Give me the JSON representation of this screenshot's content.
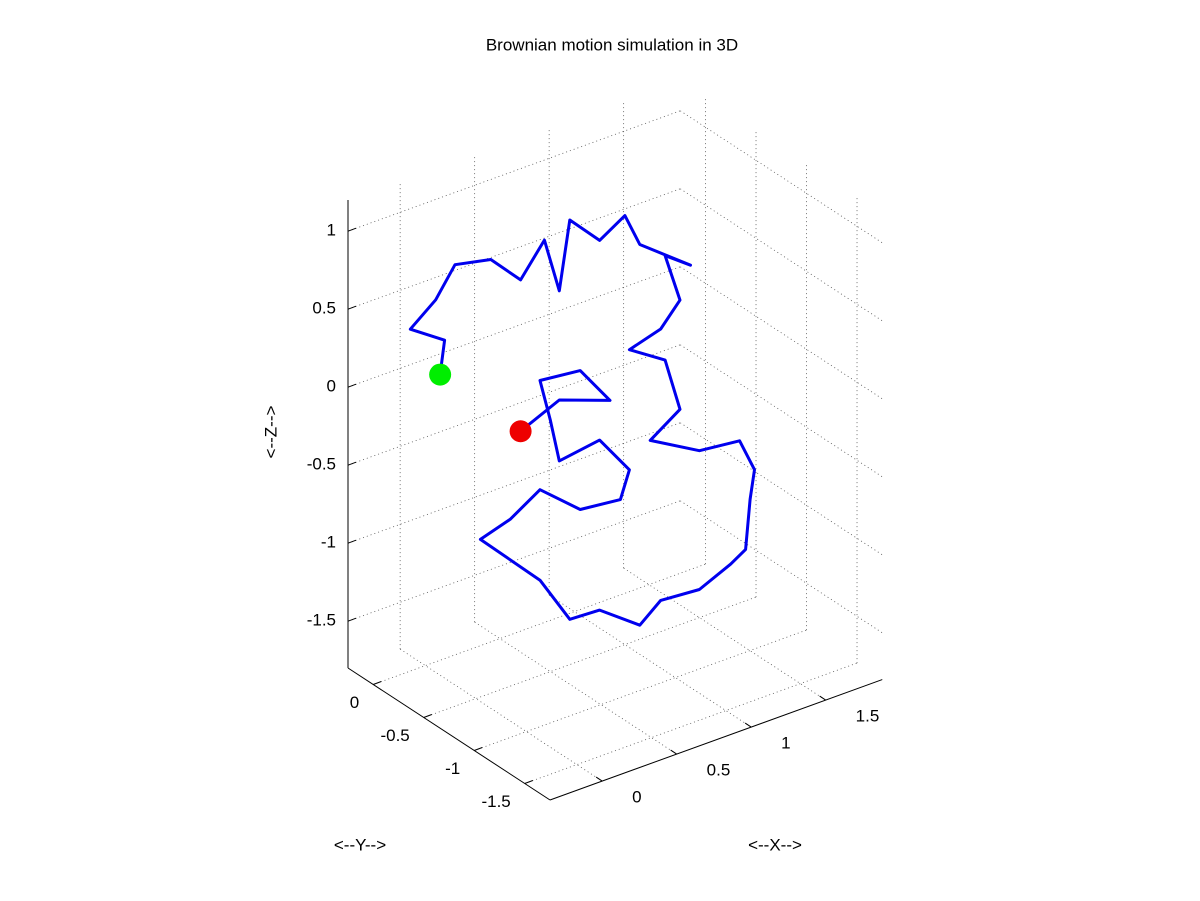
{
  "chart_data": {
    "type": "line3d",
    "title": "Brownian motion simulation in 3D",
    "xlabel": "<--X-->",
    "ylabel": "<--Y-->",
    "zlabel": "<--Z-->",
    "xlim": [
      -0.35,
      1.88
    ],
    "ylim": [
      -1.75,
      0.25
    ],
    "zlim": [
      -1.8,
      1.2
    ],
    "xticks": [
      0,
      0.5,
      1,
      1.5
    ],
    "yticks": [
      -1.5,
      -1,
      -0.5,
      0
    ],
    "zticks": [
      -1.5,
      -1,
      -0.5,
      0,
      0.5,
      1
    ],
    "grid": true,
    "start_marker_color": "#00ee00",
    "end_marker_color": "#ee0000",
    "series": [
      {
        "color": "#0000ee",
        "x": [
          -0.24,
          -0.21,
          -0.44,
          -0.27,
          -0.14,
          0.1,
          0.3,
          0.46,
          0.56,
          0.63,
          0.83,
          1.0,
          1.1,
          1.44,
          1.27,
          1.37,
          1.24,
          1.03,
          1.27,
          1.37,
          1.17,
          1.5,
          1.77,
          1.87,
          1.84,
          1.81,
          1.71,
          1.5,
          1.24,
          1.1,
          0.83,
          0.63,
          0.43,
          0.03,
          0.23,
          0.43,
          0.7,
          0.97,
          1.03,
          0.83,
          0.56,
          0.5,
          0.43,
          0.7,
          0.9,
          0.56,
          0.3
        ],
        "y": [
          -0.5,
          -0.5,
          -0.5,
          -0.5,
          -0.5,
          -0.5,
          -0.5,
          -0.5,
          -0.5,
          -0.5,
          -0.5,
          -0.5,
          -0.5,
          -0.5,
          -0.5,
          -0.5,
          -0.5,
          -0.5,
          -0.5,
          -0.5,
          -0.5,
          -0.5,
          -0.5,
          -0.5,
          -0.5,
          -0.5,
          -0.5,
          -0.5,
          -0.5,
          -0.5,
          -0.5,
          -0.5,
          -0.5,
          -0.5,
          -0.5,
          -0.5,
          -0.5,
          -0.5,
          -0.5,
          -0.5,
          -0.5,
          -0.5,
          -0.5,
          -0.5,
          -0.5,
          -0.5,
          -0.5
        ],
        "z": [
          0.36,
          0.57,
          0.72,
          0.85,
          1.03,
          0.98,
          0.78,
          0.98,
          0.62,
          1.05,
          0.85,
          0.95,
          0.73,
          0.48,
          0.6,
          0.28,
          0.14,
          0.08,
          -0.07,
          -0.42,
          -0.55,
          -0.73,
          -0.76,
          -0.98,
          -1.16,
          -1.47,
          -1.53,
          -1.62,
          -1.6,
          -1.71,
          -1.52,
          -1.51,
          -1.19,
          -0.79,
          -0.73,
          -0.61,
          -0.83,
          -0.86,
          -0.69,
          -0.43,
          -0.47,
          -0.19,
          0.09,
          0.06,
          -0.2,
          -0.08,
          -0.19
        ]
      }
    ]
  }
}
